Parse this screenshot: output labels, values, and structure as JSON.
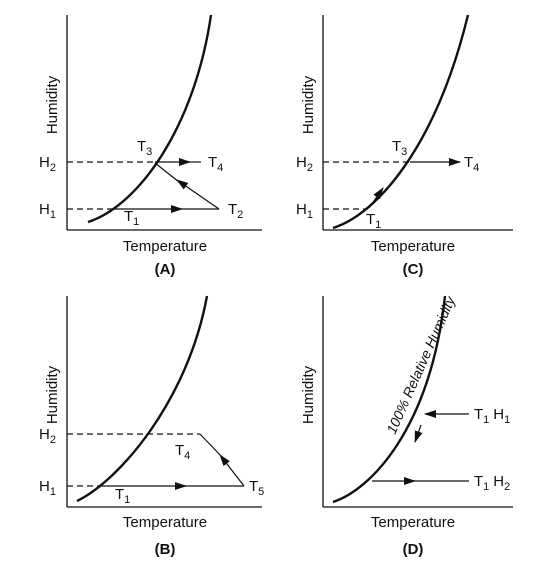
{
  "panels": [
    {
      "id": "A",
      "label": "(A)",
      "x_axis_label": "Temperature",
      "y_axis_label": "Humidity",
      "y_ticks": {
        "h2": {
          "main": "H",
          "sub": "2"
        },
        "h1": {
          "main": "H",
          "sub": "1"
        }
      },
      "points": {
        "t3": {
          "main": "T",
          "sub": "3"
        },
        "t4": {
          "main": "T",
          "sub": "4"
        },
        "t1": {
          "main": "T",
          "sub": "1"
        },
        "t2": {
          "main": "T",
          "sub": "2"
        }
      }
    },
    {
      "id": "C",
      "label": "(C)",
      "x_axis_label": "Temperature",
      "y_axis_label": "Humidity",
      "y_ticks": {
        "h2": {
          "main": "H",
          "sub": "2"
        },
        "h1": {
          "main": "H",
          "sub": "1"
        }
      },
      "points": {
        "t3": {
          "main": "T",
          "sub": "3"
        },
        "t4": {
          "main": "T",
          "sub": "4"
        },
        "t1": {
          "main": "T",
          "sub": "1"
        }
      }
    },
    {
      "id": "B",
      "label": "(B)",
      "x_axis_label": "Temperature",
      "y_axis_label": "Humidity",
      "y_ticks": {
        "h2": {
          "main": "H",
          "sub": "2"
        },
        "h1": {
          "main": "H",
          "sub": "1"
        }
      },
      "points": {
        "t4": {
          "main": "T",
          "sub": "4"
        },
        "t1": {
          "main": "T",
          "sub": "1"
        },
        "t5": {
          "main": "T",
          "sub": "5"
        }
      }
    },
    {
      "id": "D",
      "label": "(D)",
      "x_axis_label": "Temperature",
      "y_axis_label": "Humidity",
      "curve_label": "100% Relative Humidity",
      "points": {
        "upper": {
          "t": "T",
          "t_sub": "1",
          "h": "H",
          "h_sub": "1"
        },
        "lower": {
          "t": "T",
          "t_sub": "1",
          "h": "H",
          "h_sub": "2"
        }
      }
    }
  ]
}
